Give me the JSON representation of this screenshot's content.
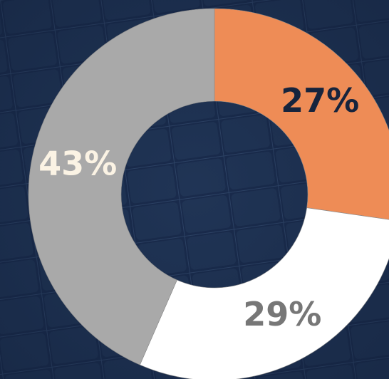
{
  "chart_data": {
    "type": "donut",
    "categories": [
      null,
      null,
      null
    ],
    "values": [
      27,
      29,
      43
    ],
    "value_labels": [
      "27%",
      "29%",
      "43%"
    ],
    "colors": [
      "#ee8c56",
      "#ffffff",
      "#a9a9a9"
    ],
    "label_colors": [
      "#16243d",
      "#777777",
      "#fbf3e4"
    ]
  }
}
